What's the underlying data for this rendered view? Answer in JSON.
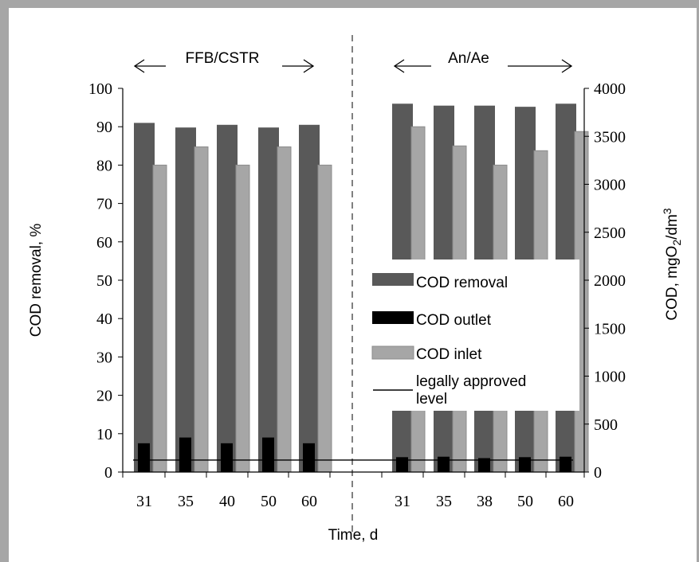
{
  "chart_data": {
    "type": "bar",
    "ylabel_left": "COD removal, %",
    "ylabel_right_main": "COD, mgO",
    "ylabel_right_sub": "2",
    "ylabel_right_tail": "/dm",
    "ylabel_right_sup": "3",
    "xlabel": "Time, d",
    "ylim_left": [
      0,
      100
    ],
    "ylim_right": [
      0,
      4000
    ],
    "yticks_left": [
      0,
      10,
      20,
      30,
      40,
      50,
      60,
      70,
      80,
      90,
      100
    ],
    "yticks_right": [
      0,
      500,
      1000,
      1500,
      2000,
      2500,
      3000,
      3500,
      4000
    ],
    "groups": [
      {
        "label": "FFB/CSTR",
        "categories": [
          "31",
          "35",
          "40",
          "50",
          "60"
        ]
      },
      {
        "label": "An/Ae",
        "categories": [
          "31",
          "35",
          "38",
          "50",
          "60"
        ]
      }
    ],
    "series": [
      {
        "name": "COD removal",
        "axis": "left",
        "color": "#595959",
        "values": [
          91,
          89.8,
          90.5,
          89.8,
          90.5,
          96,
          95.5,
          95.5,
          95.2,
          96
        ]
      },
      {
        "name": "COD outlet",
        "axis": "right",
        "color": "#000000",
        "values": [
          300,
          360,
          300,
          360,
          300,
          155,
          160,
          145,
          155,
          160
        ]
      },
      {
        "name": "COD inlet",
        "axis": "right",
        "color": "#a6a6a6",
        "values": [
          3200,
          3390,
          3200,
          3390,
          3200,
          3600,
          3400,
          3200,
          3350,
          3550
        ]
      }
    ],
    "reference_line": {
      "name": "legally approved level",
      "name_line1": "legally approved",
      "name_line2": "level",
      "axis": "right",
      "value": 125,
      "color": "#000000"
    },
    "legend_position": "center-right"
  }
}
